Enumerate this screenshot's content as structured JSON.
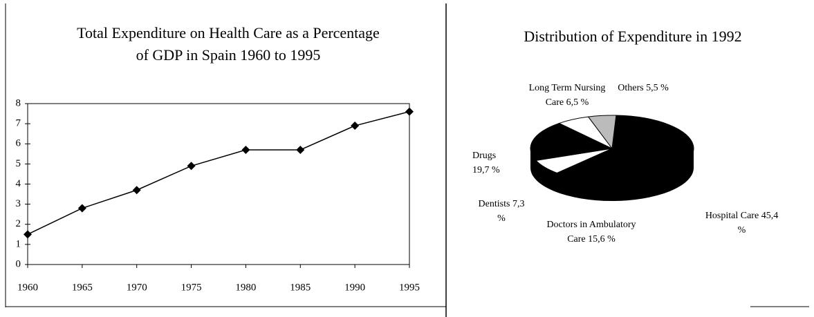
{
  "chart_data": [
    {
      "type": "line",
      "title": "Total Expenditure on Health Care as a Percentage of GDP in Spain 1960 to 1995",
      "x": [
        1960,
        1965,
        1970,
        1975,
        1980,
        1985,
        1990,
        1995
      ],
      "series": [
        {
          "color": "#000000",
          "values": [
            1.5,
            2.8,
            3.7,
            4.9,
            5.7,
            5.7,
            6.9,
            7.6
          ]
        }
      ],
      "xlim": [
        1960,
        1995
      ],
      "xticks": [
        1960,
        1965,
        1970,
        1975,
        1980,
        1985,
        1990,
        1995
      ],
      "ylim": [
        0,
        8
      ],
      "yticks": [
        0,
        1,
        2,
        3,
        4,
        5,
        6,
        7,
        8
      ]
    },
    {
      "type": "pie",
      "title": "Distribution of Expenditure in 1992",
      "categories": [
        "Hospital Care",
        "Doctors in Ambulatory Care",
        "Dentists",
        "Drugs",
        "Long Term Nursing Care",
        "Others"
      ],
      "values": [
        45.4,
        15.6,
        7.3,
        19.7,
        6.5,
        5.5
      ],
      "value_labels": [
        "45,4 %",
        "15,6 %",
        "7,3 %",
        "19,7 %",
        "6,5 %",
        "5,5 %"
      ],
      "colors": [
        "#000000",
        "#000000",
        "#ffffff",
        "#000000",
        "#ffffff",
        "#bbbbbb"
      ]
    }
  ]
}
